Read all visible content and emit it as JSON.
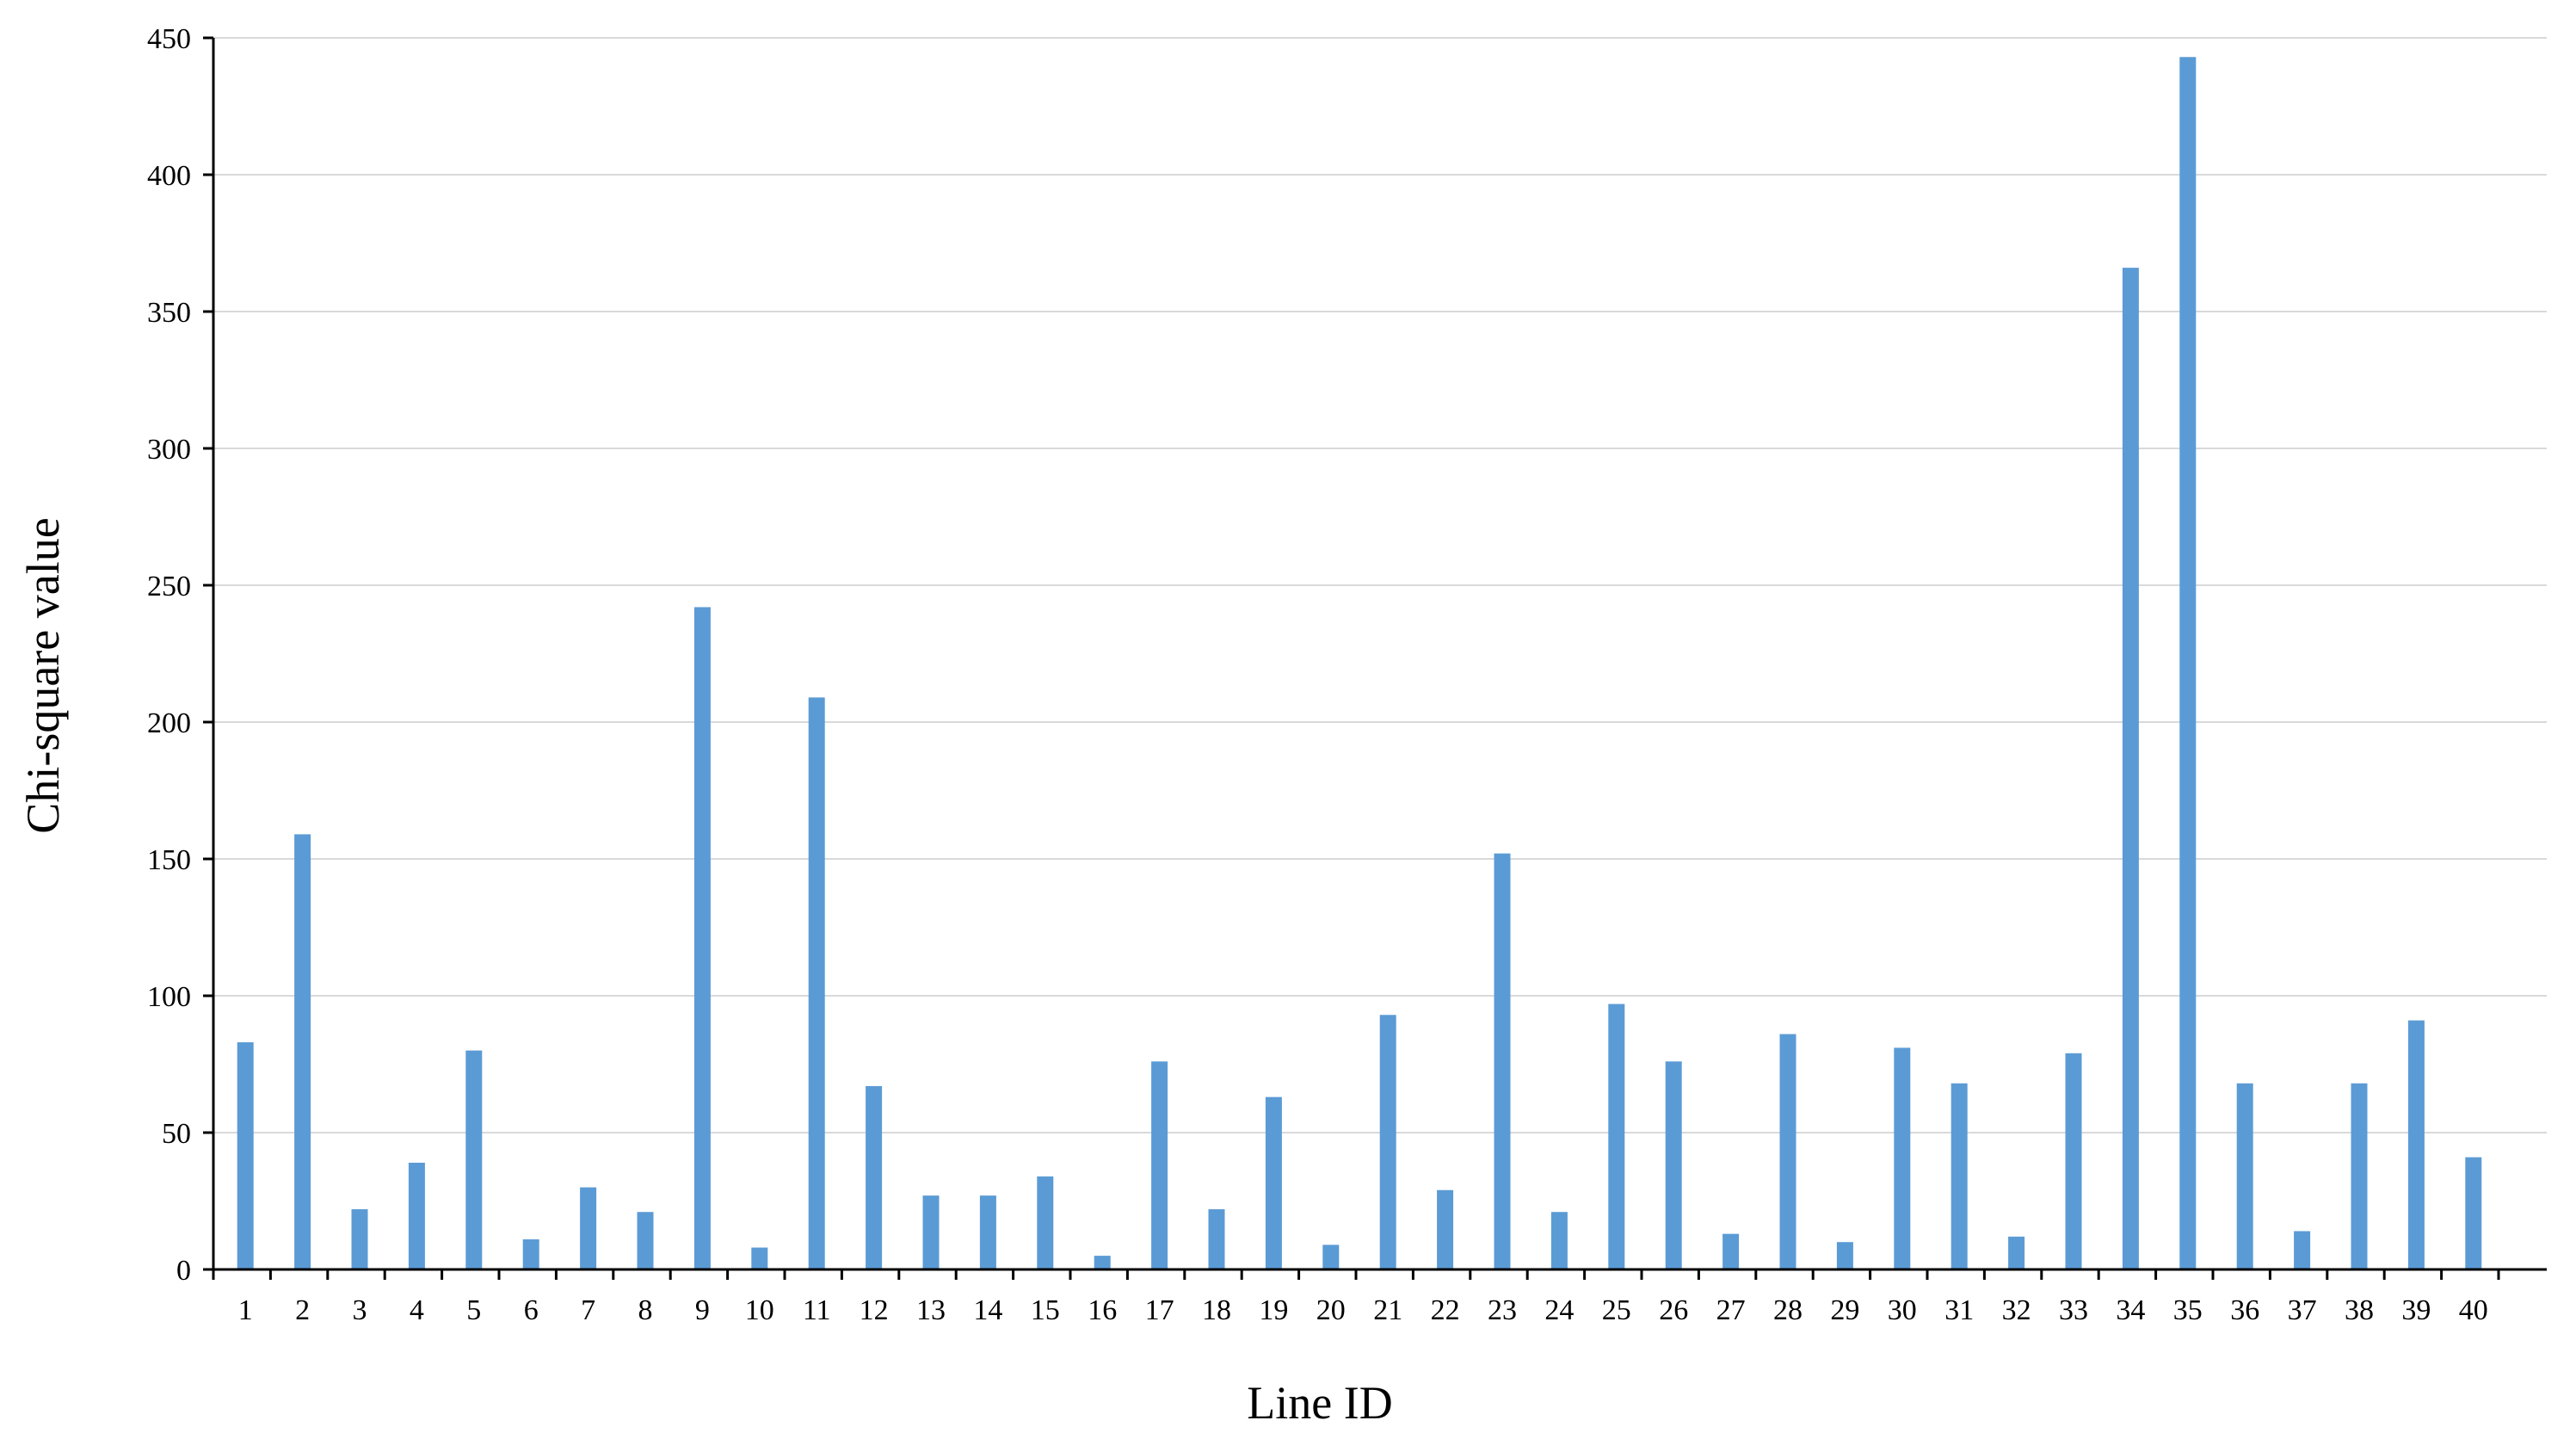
{
  "chart_data": {
    "type": "bar",
    "title": "",
    "xlabel": "Line ID",
    "ylabel": "Chi-square value",
    "ylim": [
      0,
      450
    ],
    "yticks": [
      0,
      50,
      100,
      150,
      200,
      250,
      300,
      350,
      400,
      450
    ],
    "grid": true,
    "legend": "none",
    "bar_color": "#5b9bd5",
    "categories": [
      "1",
      "2",
      "3",
      "4",
      "5",
      "6",
      "7",
      "8",
      "9",
      "10",
      "11",
      "12",
      "13",
      "14",
      "15",
      "16",
      "17",
      "18",
      "19",
      "20",
      "21",
      "22",
      "23",
      "24",
      "25",
      "26",
      "27",
      "28",
      "29",
      "30",
      "31",
      "32",
      "33",
      "34",
      "35",
      "36",
      "37",
      "38",
      "39",
      "40"
    ],
    "values": [
      83,
      159,
      22,
      39,
      80,
      11,
      30,
      21,
      242,
      8,
      209,
      67,
      27,
      27,
      34,
      5,
      76,
      22,
      63,
      9,
      93,
      29,
      152,
      21,
      97,
      76,
      13,
      86,
      10,
      81,
      68,
      12,
      79,
      366,
      443,
      68,
      14,
      68,
      91,
      41
    ]
  }
}
